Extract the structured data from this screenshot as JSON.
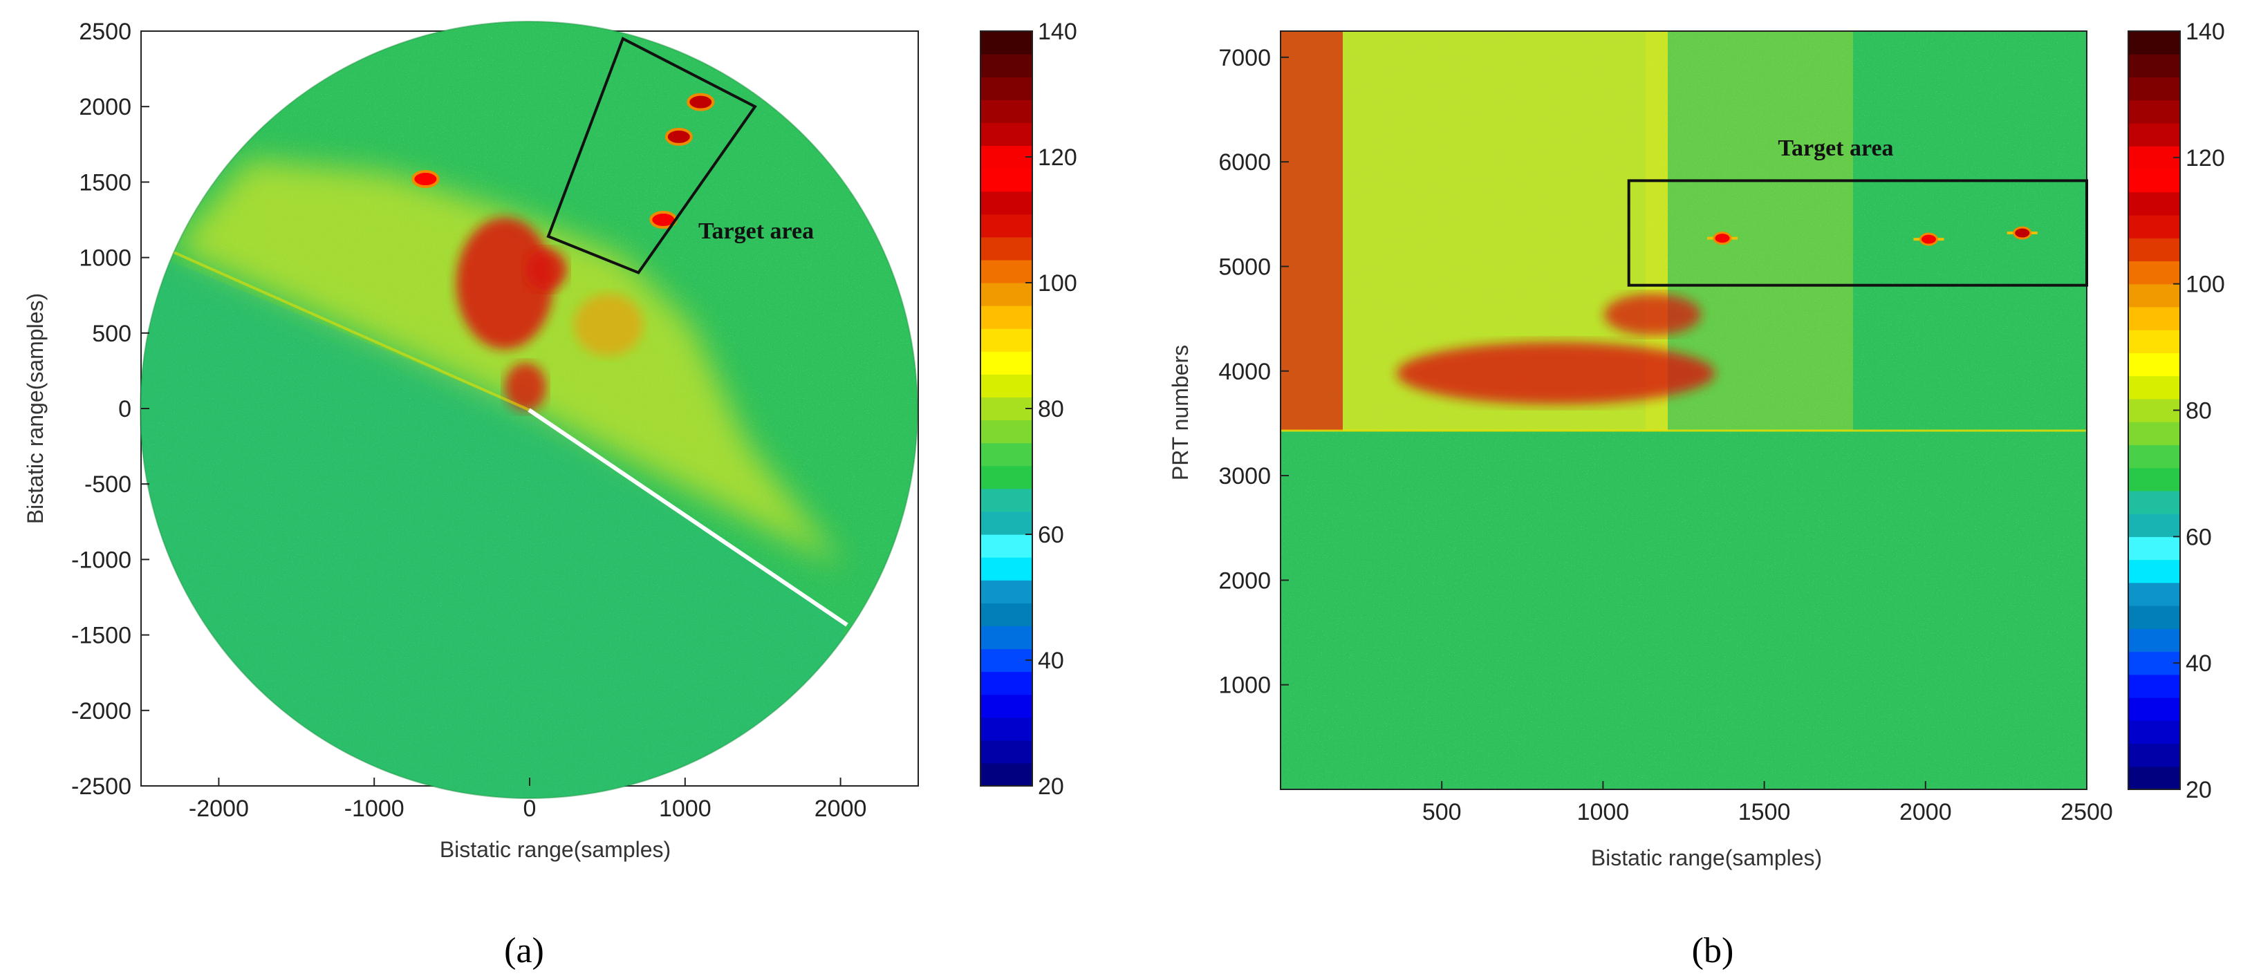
{
  "chart_data": [
    {
      "panel": "a",
      "type": "heatmap",
      "subtype": "polar PPI display",
      "xlabel": "Bistatic range(samples)",
      "ylabel": "Bistatic range(samples)",
      "xlim": [
        -2500,
        2500
      ],
      "ylim": [
        -2500,
        2500
      ],
      "xticks": [
        -2000,
        -1000,
        0,
        1000,
        2000
      ],
      "yticks": [
        2500,
        2000,
        1500,
        1000,
        500,
        0,
        -500,
        -1000,
        -1500,
        -2000,
        -2500
      ],
      "grid": false,
      "colorbar": {
        "min": 20,
        "max": 140,
        "ticks": [
          140,
          120,
          100,
          80,
          60,
          40,
          20
        ]
      },
      "annotation": {
        "text": "Target area"
      },
      "target_box": [
        [
          600,
          2450
        ],
        [
          1450,
          2000
        ],
        [
          700,
          900
        ],
        [
          120,
          1140
        ]
      ],
      "targets": [
        {
          "x": 1100,
          "y": 2030,
          "value": 125
        },
        {
          "x": 960,
          "y": 1800,
          "value": 125
        },
        {
          "x": 860,
          "y": 1250,
          "value": 120
        },
        {
          "x": -670,
          "y": 1520,
          "value": 118
        }
      ]
    },
    {
      "panel": "b",
      "type": "heatmap",
      "subtype": "range-PRT display",
      "xlabel": "Bistatic range(samples)",
      "ylabel": "PRT numbers",
      "xlim": [
        0,
        2500
      ],
      "ylim": [
        0,
        7250
      ],
      "xticks": [
        500,
        1000,
        1500,
        2000,
        2500
      ],
      "yticks": [
        7000,
        6000,
        5000,
        4000,
        3000,
        2000,
        1000
      ],
      "grid": false,
      "colorbar": {
        "min": 20,
        "max": 140,
        "ticks": [
          140,
          120,
          100,
          80,
          60,
          40,
          20
        ]
      },
      "annotation": {
        "text": "Target area"
      },
      "target_box": {
        "x": [
          1080,
          2500
        ],
        "y": [
          4820,
          5820
        ]
      },
      "targets": [
        {
          "x": 1370,
          "y": 5270,
          "value": 120
        },
        {
          "x": 2010,
          "y": 5260,
          "value": 122
        },
        {
          "x": 2300,
          "y": 5320,
          "value": 125
        }
      ]
    }
  ],
  "colormap": [
    "#000080",
    "#0000a8",
    "#0000cc",
    "#0000ee",
    "#0018ff",
    "#0048ff",
    "#0070e0",
    "#007fb8",
    "#0d94c8",
    "#00e8ff",
    "#40f8ff",
    "#18b4b4",
    "#1fbf9f",
    "#28c848",
    "#48d048",
    "#7fd830",
    "#a8e020",
    "#d8ee00",
    "#ffff00",
    "#ffe000",
    "#ffbf00",
    "#f09a00",
    "#f07000",
    "#e03a00",
    "#dc1000",
    "#cc0000",
    "#ff0000",
    "#f80000",
    "#c00000",
    "#a00000",
    "#800000",
    "#600000",
    "#400000"
  ],
  "captions": {
    "a": "(a)",
    "b": "(b)"
  }
}
